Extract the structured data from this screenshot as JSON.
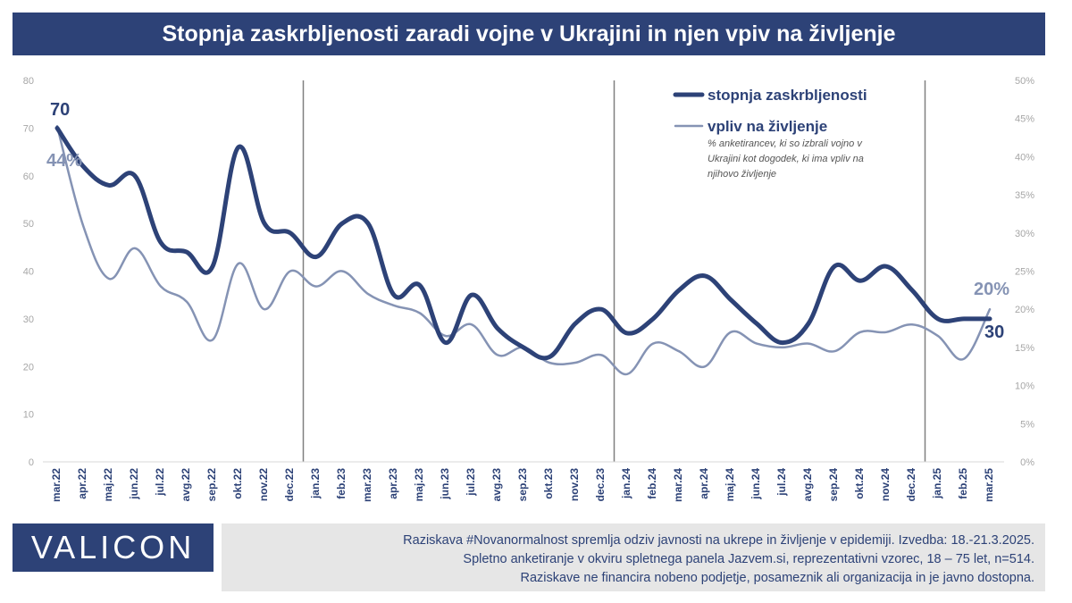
{
  "title": "Stopnja zaskrbljenosti zaradi vojne v Ukrajini in njen vpiv na življenje",
  "logo": "VALICON",
  "notes": [
    "Raziskava #Novanormalnost spremlja odziv javnosti na ukrepe in življenje v epidemiji. Izvedba: 18.-21.3.2025.",
    "Spletno anketiranje v okviru spletnega panela Jazvem.si, reprezentativni vzorec, 18 – 75 let, n=514.",
    "Raziskave ne financira nobeno podjetje, posameznik ali organizacija in je javno dostopna."
  ],
  "chart_data": {
    "type": "line",
    "categories": [
      "mar.22",
      "apr.22",
      "maj.22",
      "jun.22",
      "jul.22",
      "avg.22",
      "sep.22",
      "okt.22",
      "nov.22",
      "dec.22",
      "jan.23",
      "feb.23",
      "mar.23",
      "apr.23",
      "maj.23",
      "jun.23",
      "jul.23",
      "avg.23",
      "sep.23",
      "okt.23",
      "nov.23",
      "dec.23",
      "jan.24",
      "feb.24",
      "mar.24",
      "apr.24",
      "maj.24",
      "jun.24",
      "jul.24",
      "avg.24",
      "sep.24",
      "okt.24",
      "nov.24",
      "dec.24",
      "jan.25",
      "feb.25",
      "mar.25"
    ],
    "series": [
      {
        "name": "stopnja zaskrbljenosti",
        "axis": "left",
        "color": "#2d4277",
        "values": [
          70,
          62,
          58,
          60,
          46,
          44,
          41,
          66,
          50,
          48,
          43,
          50,
          50,
          35,
          37,
          25,
          35,
          28,
          24,
          22,
          29,
          32,
          27,
          30,
          36,
          39,
          34,
          29,
          25,
          29,
          41,
          38,
          41,
          36,
          30,
          30,
          30
        ]
      },
      {
        "name": "vpliv na življenje",
        "axis": "right",
        "color": "#8593b4",
        "values": [
          44,
          31,
          24,
          28,
          23,
          21,
          16,
          26,
          20,
          25,
          23,
          25,
          22,
          20.5,
          19.5,
          16.5,
          18,
          14,
          15,
          13,
          13,
          14,
          11.5,
          15.5,
          14.5,
          12.5,
          17,
          15.5,
          15,
          15.5,
          14.5,
          17,
          17,
          18,
          16.5,
          13.5,
          20
        ]
      }
    ],
    "legend_note": "% anketirancev, ki so izbrali vojno v Ukrajini kot dogodek, ki ima vpliv na njihovo življenje",
    "ylim_left": [
      0,
      80
    ],
    "yticks_left": [
      "0",
      "10",
      "20",
      "30",
      "40",
      "50",
      "60",
      "70",
      "80"
    ],
    "ylim_right": [
      0,
      50
    ],
    "yticks_right": [
      "0%",
      "5%",
      "10%",
      "15%",
      "20%",
      "25%",
      "30%",
      "35%",
      "40%",
      "45%",
      "50%"
    ],
    "annotations": {
      "first_left": "70",
      "first_right": "44%",
      "last_left": "30",
      "last_right": "20%"
    },
    "year_separators_after": [
      "dec.22",
      "dec.23",
      "dec.24"
    ],
    "legend_position": "top-right",
    "grid": false
  }
}
